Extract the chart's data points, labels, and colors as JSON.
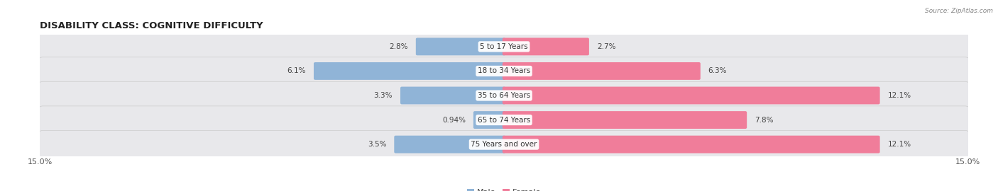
{
  "title": "DISABILITY CLASS: COGNITIVE DIFFICULTY",
  "source": "Source: ZipAtlas.com",
  "categories": [
    "5 to 17 Years",
    "18 to 34 Years",
    "35 to 64 Years",
    "65 to 74 Years",
    "75 Years and over"
  ],
  "male_values": [
    2.8,
    6.1,
    3.3,
    0.94,
    3.5
  ],
  "female_values": [
    2.7,
    6.3,
    12.1,
    7.8,
    12.1
  ],
  "male_labels": [
    "2.8%",
    "6.1%",
    "3.3%",
    "0.94%",
    "3.5%"
  ],
  "female_labels": [
    "2.7%",
    "6.3%",
    "12.1%",
    "7.8%",
    "12.1%"
  ],
  "male_color": "#90b4d7",
  "female_color": "#f07d9a",
  "row_bg_color": "#e8e8eb",
  "max_val": 15.0,
  "title_fontsize": 9.5,
  "label_fontsize": 7.5,
  "tick_fontsize": 8,
  "category_fontsize": 7.5,
  "legend_fontsize": 8,
  "background_color": "#ffffff"
}
